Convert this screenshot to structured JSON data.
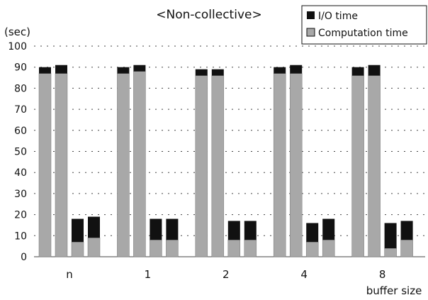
{
  "chart_data": {
    "type": "bar",
    "stacked": true,
    "title": "<Non-collective>",
    "ylabel": "(sec)",
    "xlabel": "buffer size",
    "ylim": [
      0,
      100
    ],
    "ytick_step": 10,
    "grid": "dotted horizontal",
    "legend_position": "top-right",
    "categories": [
      "n",
      "1",
      "2",
      "4",
      "8"
    ],
    "series": [
      {
        "name": "I/O time",
        "color": "#111111",
        "values": [
          [
            3,
            4,
            11,
            10
          ],
          [
            3,
            3,
            10,
            10
          ],
          [
            3,
            3,
            9,
            9
          ],
          [
            3,
            4,
            9,
            10
          ],
          [
            4,
            5,
            12,
            9
          ]
        ]
      },
      {
        "name": "Computation time",
        "color": "#a8a8a8",
        "values": [
          [
            87,
            87,
            7,
            9
          ],
          [
            87,
            88,
            8,
            8
          ],
          [
            86,
            86,
            8,
            8
          ],
          [
            87,
            87,
            7,
            8
          ],
          [
            86,
            86,
            4,
            8
          ]
        ]
      }
    ]
  }
}
